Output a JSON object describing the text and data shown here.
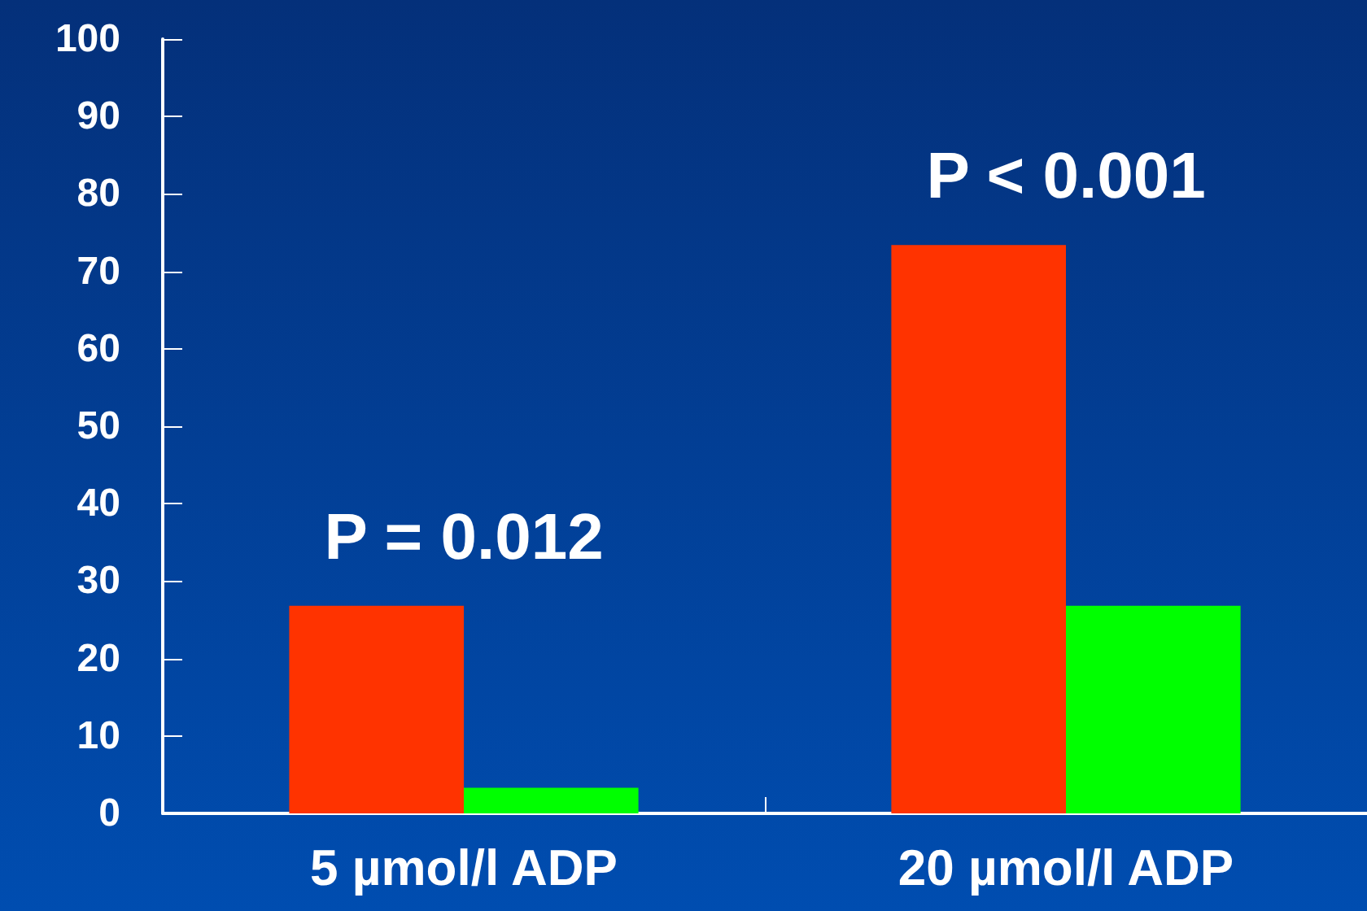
{
  "chart_data": {
    "type": "bar",
    "categories": [
      "5 µmol/l ADP",
      "20 µmol/l ADP"
    ],
    "series": [
      {
        "color": "#ff3300",
        "values": [
          26.8,
          73.4
        ]
      },
      {
        "color": "#00ff00",
        "values": [
          3.3,
          26.8
        ]
      }
    ],
    "ylim": [
      0,
      100
    ],
    "yticks": [
      0,
      10,
      20,
      30,
      40,
      50,
      60,
      70,
      80,
      90,
      100
    ],
    "annotations": [
      "P = 0.012",
      "P < 0.001"
    ],
    "grid": false
  }
}
